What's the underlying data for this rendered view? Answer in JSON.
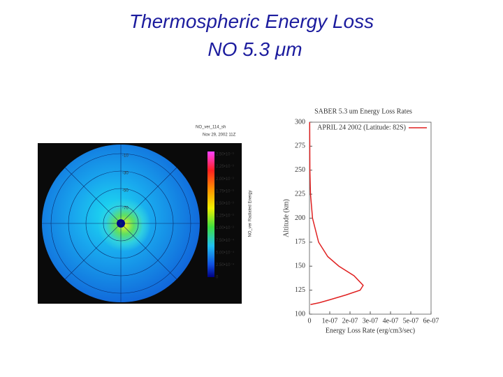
{
  "title": "Thermospheric Energy Loss",
  "subtitle": "NO 5.3 μm",
  "map": {
    "label": "NO_ver_114_sh",
    "date": "Nov 29, 2002 11Z",
    "colorbar_label": "NO_ver Radiated Energy",
    "colorbar_ticks": [
      "2.50•10⁻³",
      "2.25•10⁻³",
      "2.00•10⁻³",
      "1.75•10⁻³",
      "1.50•10⁻³",
      "1.25•10⁻³",
      "1.00•10⁻³",
      "7.50•10⁻⁴",
      "5.00•10⁻⁴",
      "2.50•10⁻⁴",
      "0"
    ],
    "ring_labels": [
      "-10",
      "-30",
      "-50",
      "-70"
    ]
  },
  "chart_data": {
    "type": "line",
    "title": "SABER 5.3 um Energy Loss Rates",
    "xlabel": "Energy Loss Rate (erg/cm3/sec)",
    "ylabel": "Altitude (km)",
    "x": [
      5e-09,
      5e-08,
      1e-07,
      1.8e-07,
      2.5e-07,
      2.65e-07,
      2.2e-07,
      1.45e-07,
      9e-08,
      4.5e-08,
      1.5e-08,
      5e-09,
      2e-09,
      1e-09
    ],
    "series": [
      {
        "name": "APRIL 24 2002 (Latitude: 82S)",
        "color": "#e02020",
        "values": [
          110,
          112,
          115,
          120,
          125,
          130,
          140,
          150,
          160,
          175,
          200,
          225,
          250,
          300
        ]
      }
    ],
    "xlim": [
      0,
      6e-07
    ],
    "xticks": [
      0,
      {
        "value": 1e-07,
        "label": "1e-07"
      },
      {
        "value": 2e-07,
        "label": "2e-07"
      },
      {
        "value": 3e-07,
        "label": "3e-07"
      },
      {
        "value": 4e-07,
        "label": "4e-07"
      },
      {
        "value": 5e-07,
        "label": "5e-07"
      },
      {
        "value": 6e-07,
        "label": "6e-07"
      }
    ],
    "ylim": [
      100,
      300
    ],
    "yticks": [
      100,
      125,
      150,
      175,
      200,
      225,
      250,
      275,
      300
    ],
    "legend": "upper right"
  }
}
